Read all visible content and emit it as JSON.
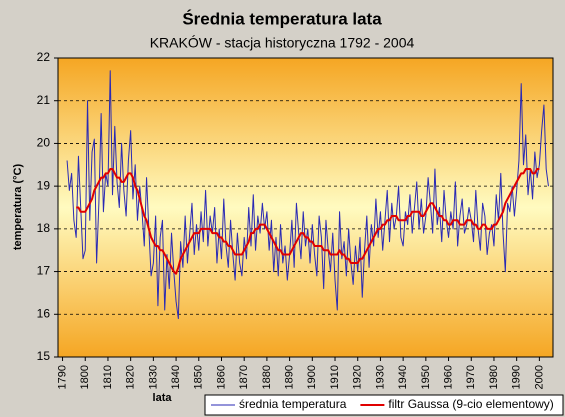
{
  "chart_data": {
    "type": "line",
    "title": "Średnia temperatura lata",
    "subtitle": "KRAKÓW - stacja historyczna 1792 - 2004",
    "y_label": "temperatura (°C)",
    "x_label": "lata",
    "xlim": [
      1788,
      2006
    ],
    "xticks": [
      1790,
      1800,
      1810,
      1820,
      1830,
      1840,
      1850,
      1860,
      1870,
      1880,
      1890,
      1900,
      1910,
      1920,
      1930,
      1940,
      1950,
      1960,
      1970,
      1980,
      1990,
      2000
    ],
    "ylim": [
      15,
      22
    ],
    "yticks": [
      15,
      16,
      17,
      18,
      19,
      20,
      21,
      22
    ],
    "grid": true,
    "legend": "bottom-right",
    "x": [
      1792,
      1793,
      1794,
      1795,
      1796,
      1797,
      1798,
      1799,
      1800,
      1801,
      1802,
      1803,
      1804,
      1805,
      1806,
      1807,
      1808,
      1809,
      1810,
      1811,
      1812,
      1813,
      1814,
      1815,
      1816,
      1817,
      1818,
      1819,
      1820,
      1821,
      1822,
      1823,
      1824,
      1825,
      1826,
      1827,
      1828,
      1829,
      1830,
      1831,
      1832,
      1833,
      1834,
      1835,
      1836,
      1837,
      1838,
      1839,
      1840,
      1841,
      1842,
      1843,
      1844,
      1845,
      1846,
      1847,
      1848,
      1849,
      1850,
      1851,
      1852,
      1853,
      1854,
      1855,
      1856,
      1857,
      1858,
      1859,
      1860,
      1861,
      1862,
      1863,
      1864,
      1865,
      1866,
      1867,
      1868,
      1869,
      1870,
      1871,
      1872,
      1873,
      1874,
      1875,
      1876,
      1877,
      1878,
      1879,
      1880,
      1881,
      1882,
      1883,
      1884,
      1885,
      1886,
      1887,
      1888,
      1889,
      1890,
      1891,
      1892,
      1893,
      1894,
      1895,
      1896,
      1897,
      1898,
      1899,
      1900,
      1901,
      1902,
      1903,
      1904,
      1905,
      1906,
      1907,
      1908,
      1909,
      1910,
      1911,
      1912,
      1913,
      1914,
      1915,
      1916,
      1917,
      1918,
      1919,
      1920,
      1921,
      1922,
      1923,
      1924,
      1925,
      1926,
      1927,
      1928,
      1929,
      1930,
      1931,
      1932,
      1933,
      1934,
      1935,
      1936,
      1937,
      1938,
      1939,
      1940,
      1941,
      1942,
      1943,
      1944,
      1945,
      1946,
      1947,
      1948,
      1949,
      1950,
      1951,
      1952,
      1953,
      1954,
      1955,
      1956,
      1957,
      1958,
      1959,
      1960,
      1961,
      1962,
      1963,
      1964,
      1965,
      1966,
      1967,
      1968,
      1969,
      1970,
      1971,
      1972,
      1973,
      1974,
      1975,
      1976,
      1977,
      1978,
      1979,
      1980,
      1981,
      1982,
      1983,
      1984,
      1985,
      1986,
      1987,
      1988,
      1989,
      1990,
      1991,
      1992,
      1993,
      1994,
      1995,
      1996,
      1997,
      1998,
      1999,
      2000,
      2001,
      2002,
      2003,
      2004
    ],
    "series": [
      {
        "name": "średnia temperatura",
        "color": "#2a2ab4",
        "width": 1,
        "values": [
          19.6,
          18.9,
          19.3,
          18.2,
          17.8,
          19.7,
          18.5,
          17.3,
          17.5,
          21.0,
          18.2,
          19.8,
          20.1,
          17.2,
          18.6,
          20.7,
          18.4,
          19.3,
          19.0,
          21.7,
          18.8,
          20.4,
          19.1,
          18.5,
          20.0,
          18.9,
          18.3,
          19.6,
          20.3,
          18.7,
          19.5,
          18.2,
          19.0,
          18.4,
          17.6,
          19.2,
          18.0,
          16.9,
          17.2,
          18.3,
          16.2,
          17.8,
          18.2,
          16.1,
          17.4,
          16.6,
          17.9,
          17.0,
          16.3,
          15.9,
          17.7,
          17.1,
          18.3,
          17.2,
          17.9,
          18.6,
          17.4,
          18.1,
          17.5,
          18.4,
          17.7,
          18.9,
          17.6,
          18.3,
          17.9,
          18.5,
          17.2,
          18.0,
          17.3,
          18.7,
          17.6,
          17.1,
          18.2,
          17.4,
          16.8,
          17.9,
          17.2,
          16.9,
          17.8,
          17.3,
          18.5,
          17.6,
          18.8,
          17.5,
          18.3,
          17.9,
          18.6,
          18.0,
          18.4,
          17.5,
          18.2,
          17.0,
          17.8,
          16.9,
          18.1,
          17.2,
          17.6,
          16.8,
          17.4,
          18.2,
          17.1,
          18.6,
          17.9,
          17.3,
          18.4,
          17.6,
          18.0,
          17.2,
          18.1,
          17.4,
          16.9,
          18.3,
          17.8,
          16.6,
          18.2,
          17.5,
          17.0,
          17.9,
          16.8,
          16.1,
          18.4,
          17.3,
          17.7,
          16.9,
          18.0,
          17.2,
          16.7,
          17.6,
          17.0,
          17.8,
          16.4,
          17.5,
          18.3,
          17.1,
          18.1,
          17.6,
          18.7,
          17.8,
          18.4,
          17.5,
          18.2,
          18.9,
          17.7,
          18.6,
          18.0,
          18.3,
          19.0,
          17.8,
          17.6,
          18.4,
          18.1,
          18.8,
          17.9,
          18.5,
          19.1,
          18.0,
          18.7,
          17.9,
          18.3,
          19.2,
          18.6,
          17.9,
          19.4,
          18.1,
          18.5,
          17.7,
          18.9,
          18.2,
          17.8,
          18.4,
          18.0,
          19.1,
          17.6,
          18.3,
          18.7,
          17.9,
          18.1,
          18.5,
          18.2,
          17.7,
          18.9,
          18.0,
          17.5,
          18.6,
          18.3,
          17.4,
          17.9,
          18.1,
          17.6,
          18.8,
          18.2,
          19.3,
          17.9,
          17.0,
          18.6,
          18.4,
          19.0,
          18.3,
          18.9,
          19.6,
          21.4,
          19.5,
          20.2,
          18.8,
          19.4,
          18.7,
          19.8,
          19.2,
          19.5,
          20.3,
          20.9,
          19.4,
          19.0
        ]
      },
      {
        "name": "filtr Gaussa (9-cio elementowy)",
        "color": "#e00000",
        "width": 2,
        "values": [
          null,
          null,
          null,
          null,
          18.5,
          18.5,
          18.4,
          18.4,
          18.4,
          18.5,
          18.6,
          18.7,
          18.9,
          19.0,
          19.1,
          19.2,
          19.2,
          19.3,
          19.3,
          19.4,
          19.4,
          19.3,
          19.2,
          19.2,
          19.1,
          19.1,
          19.2,
          19.3,
          19.3,
          19.2,
          19.0,
          18.9,
          18.7,
          18.5,
          18.3,
          18.2,
          18.0,
          17.8,
          17.7,
          17.6,
          17.6,
          17.5,
          17.5,
          17.4,
          17.3,
          17.2,
          17.1,
          17.0,
          16.95,
          17.1,
          17.3,
          17.4,
          17.5,
          17.6,
          17.7,
          17.8,
          17.9,
          17.9,
          17.9,
          18.0,
          18.0,
          18.0,
          18.0,
          18.0,
          17.9,
          17.9,
          17.9,
          17.8,
          17.8,
          17.7,
          17.7,
          17.6,
          17.6,
          17.5,
          17.4,
          17.4,
          17.4,
          17.4,
          17.5,
          17.6,
          17.7,
          17.9,
          17.9,
          18.0,
          18.0,
          18.1,
          18.1,
          18.1,
          18.0,
          17.9,
          17.8,
          17.7,
          17.6,
          17.5,
          17.5,
          17.4,
          17.4,
          17.4,
          17.4,
          17.5,
          17.6,
          17.7,
          17.8,
          17.9,
          17.9,
          17.8,
          17.8,
          17.7,
          17.7,
          17.6,
          17.6,
          17.6,
          17.6,
          17.5,
          17.5,
          17.5,
          17.4,
          17.4,
          17.4,
          17.4,
          17.5,
          17.4,
          17.4,
          17.3,
          17.3,
          17.2,
          17.2,
          17.2,
          17.2,
          17.3,
          17.3,
          17.4,
          17.5,
          17.6,
          17.7,
          17.8,
          17.9,
          18.0,
          18.0,
          18.1,
          18.1,
          18.2,
          18.2,
          18.3,
          18.3,
          18.3,
          18.2,
          18.2,
          18.2,
          18.2,
          18.3,
          18.3,
          18.4,
          18.4,
          18.4,
          18.4,
          18.3,
          18.3,
          18.4,
          18.5,
          18.6,
          18.6,
          18.5,
          18.4,
          18.3,
          18.3,
          18.2,
          18.2,
          18.1,
          18.1,
          18.2,
          18.2,
          18.2,
          18.1,
          18.1,
          18.1,
          18.2,
          18.2,
          18.2,
          18.1,
          18.1,
          18.0,
          18.0,
          18.1,
          18.1,
          18.0,
          18.0,
          18.0,
          18.1,
          18.1,
          18.2,
          18.3,
          18.4,
          18.6,
          18.7,
          18.8,
          18.9,
          19.0,
          19.1,
          19.2,
          19.3,
          19.3,
          19.4,
          19.4,
          19.4,
          19.3,
          19.3,
          19.4,
          19.4,
          null,
          null,
          null,
          null
        ]
      }
    ]
  }
}
